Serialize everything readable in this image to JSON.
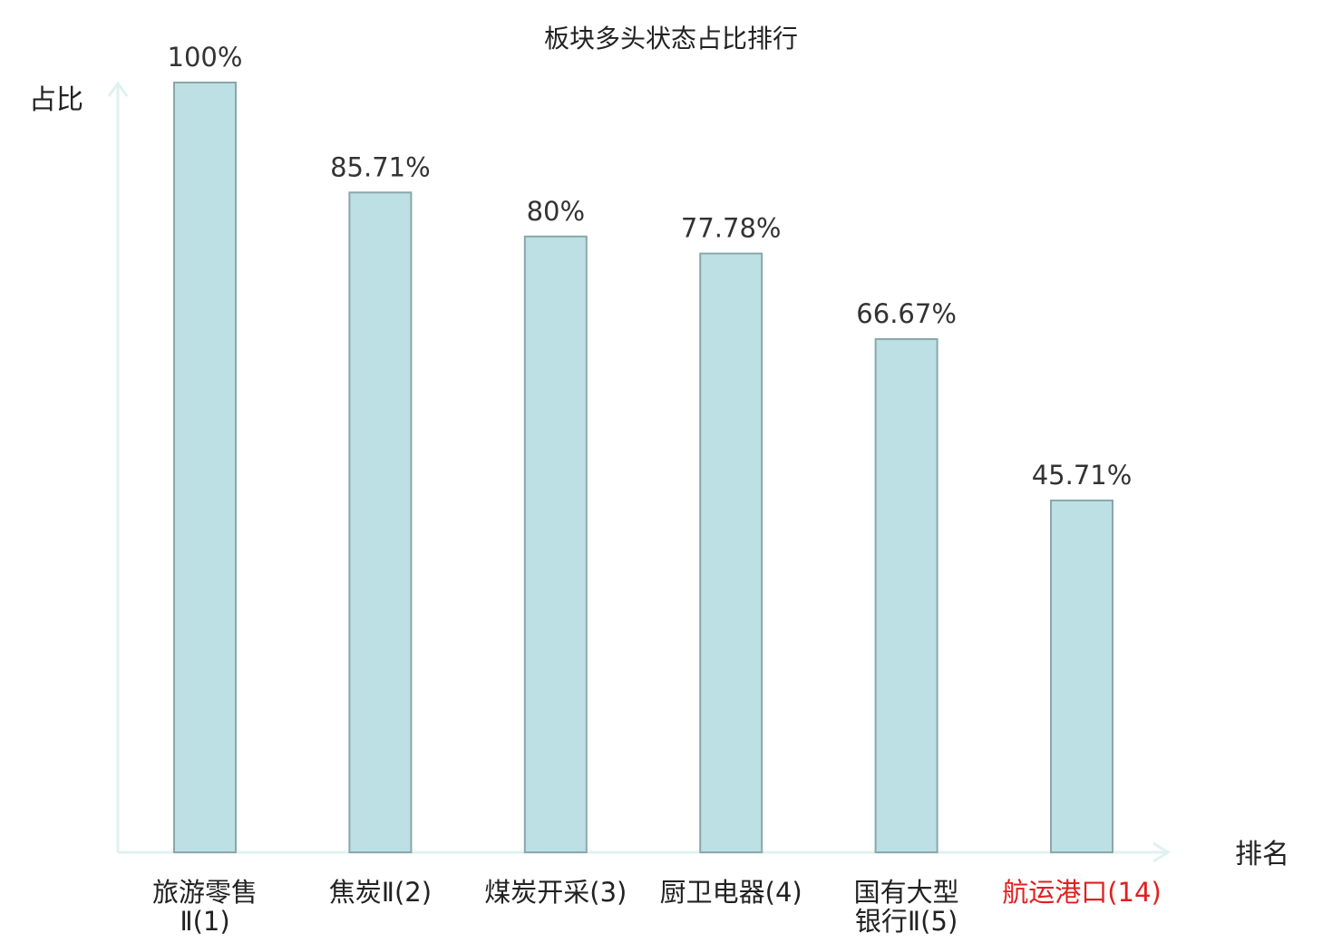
{
  "chart_data": {
    "type": "bar",
    "title": "板块多头状态占比排行",
    "xlabel": "排名",
    "ylabel": "占比",
    "ylim": [
      0,
      100
    ],
    "grid": false,
    "categories": [
      "旅游零售Ⅱ(1)",
      "焦炭Ⅱ(2)",
      "煤炭开采(3)",
      "厨卫电器(4)",
      "国有大型银行Ⅱ(5)",
      "航运港口(14)"
    ],
    "category_lines": [
      [
        "旅游零售",
        "Ⅱ(1)"
      ],
      [
        "焦炭Ⅱ(2)"
      ],
      [
        "煤炭开采(3)"
      ],
      [
        "厨卫电器(4)"
      ],
      [
        "国有大型",
        "银行Ⅱ(5)"
      ],
      [
        "航运港口(14)"
      ]
    ],
    "values": [
      100,
      85.71,
      80,
      77.78,
      66.67,
      45.71
    ],
    "value_labels": [
      "100%",
      "85.71%",
      "80%",
      "77.78%",
      "66.67%",
      "45.71%"
    ],
    "highlight_index": 5,
    "colors": {
      "bar_fill": "#bce0e3",
      "bar_stroke": "#8aa7ab",
      "axis": "#dff2ef",
      "highlight_text": "#e02020",
      "text": "#222222"
    }
  }
}
